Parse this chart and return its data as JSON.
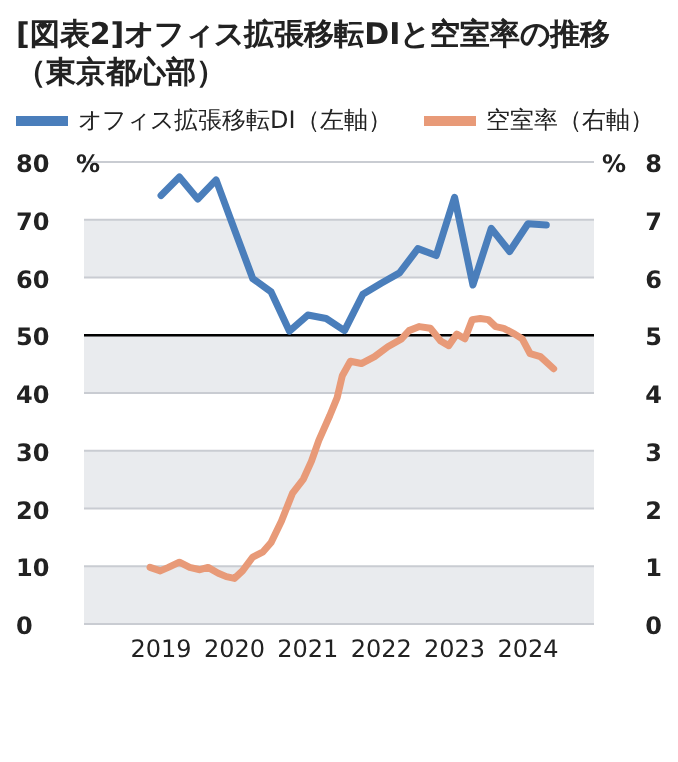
{
  "chart_data": {
    "type": "line",
    "title": "[図表2]オフィス拡張移転DIと空室率の推移（東京都心部）",
    "ylabel": "%",
    "y2label": "%",
    "legend": "top left",
    "grid": "y",
    "marker": "none",
    "line_style": "solid",
    "xlim": [
      2017.95,
      2024.9
    ],
    "xticks": [
      2019,
      2020,
      2021,
      2022,
      2023,
      2024
    ],
    "ylim": [
      0,
      80
    ],
    "yticks": [
      0,
      10,
      20,
      30,
      40,
      50,
      60,
      70,
      80
    ],
    "y2lim": [
      0,
      8
    ],
    "y2ticks": [
      0,
      1,
      2,
      3,
      4,
      5,
      6,
      7,
      8
    ],
    "ref_lines": [
      {
        "axis": "y",
        "value": 50,
        "color": "#000000"
      }
    ],
    "series": [
      {
        "name": "オフィス拡張移転DI（左軸）",
        "color": "#4a7ebb",
        "x": [
          2019.0,
          2019.25,
          2019.5,
          2019.75,
          2020.0,
          2020.25,
          2020.5,
          2020.75,
          2021.0,
          2021.25,
          2021.5,
          2021.75,
          2022.0,
          2022.25,
          2022.5,
          2022.75,
          2023.0,
          2023.25,
          2023.5,
          2023.75,
          2024.0,
          2024.25
        ],
        "values": [
          74.2,
          77.4,
          73.6,
          76.9,
          68.3,
          59.8,
          57.5,
          50.7,
          53.5,
          52.9,
          50.8,
          57.1,
          59.0,
          60.8,
          65.0,
          63.8,
          73.9,
          58.7,
          68.5,
          64.5,
          69.3,
          69.1
        ]
      },
      {
        "name": "空室率（右軸）",
        "color": "#e89a78",
        "axis": "y2",
        "x": [
          2018.85,
          2018.99,
          2019.1,
          2019.25,
          2019.39,
          2019.53,
          2019.64,
          2019.78,
          2019.89,
          2020.0,
          2020.11,
          2020.25,
          2020.39,
          2020.5,
          2020.64,
          2020.79,
          2020.94,
          2021.05,
          2021.15,
          2021.3,
          2021.4,
          2021.47,
          2021.58,
          2021.73,
          2021.91,
          2022.09,
          2022.27,
          2022.38,
          2022.52,
          2022.67,
          2022.81,
          2022.92,
          2023.03,
          2023.14,
          2023.24,
          2023.35,
          2023.46,
          2023.56,
          2023.67,
          2023.82,
          2023.92,
          2024.03,
          2024.17,
          2024.35
        ],
        "values": [
          0.98,
          0.92,
          0.98,
          1.07,
          0.98,
          0.94,
          0.98,
          0.88,
          0.82,
          0.79,
          0.92,
          1.16,
          1.25,
          1.41,
          1.78,
          2.26,
          2.51,
          2.82,
          3.18,
          3.61,
          3.92,
          4.3,
          4.55,
          4.51,
          4.63,
          4.8,
          4.93,
          5.08,
          5.15,
          5.12,
          4.9,
          4.82,
          5.02,
          4.94,
          5.27,
          5.29,
          5.27,
          5.15,
          5.12,
          5.02,
          4.94,
          4.68,
          4.63,
          4.42
        ]
      }
    ]
  }
}
